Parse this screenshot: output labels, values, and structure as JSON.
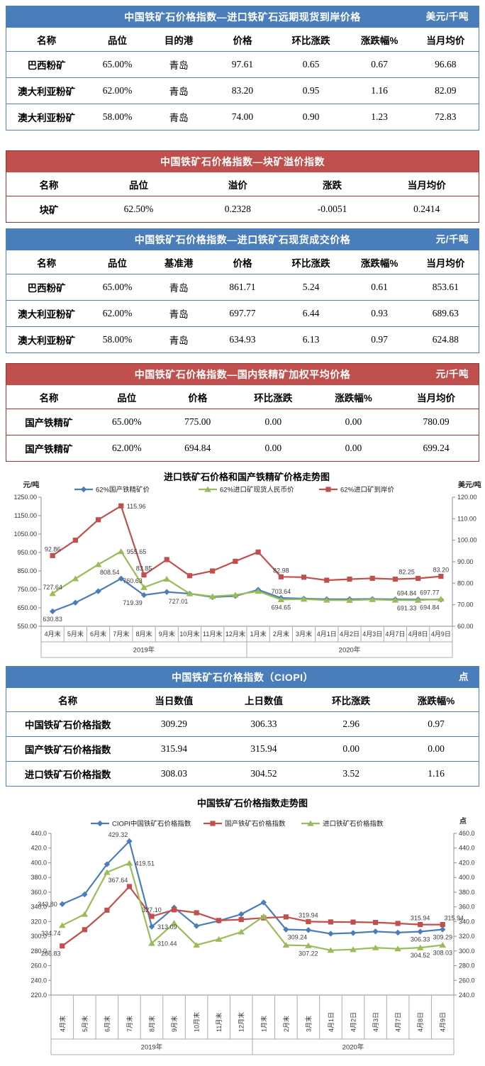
{
  "tables": [
    {
      "id": "forward-spot",
      "theme": "blue",
      "title": "中国铁矿石价格指数—进口铁矿石远期现货到岸价格",
      "unit": "美元/千吨",
      "columns": [
        "名称",
        "品位",
        "目的港",
        "价格",
        "环比涨跌",
        "涨跌幅%",
        "当月均价"
      ],
      "rows": [
        [
          "巴西粉矿",
          "65.00%",
          "青岛",
          "97.61",
          "0.65",
          "0.67",
          "96.68"
        ],
        [
          "澳大利亚粉矿",
          "62.00%",
          "青岛",
          "83.20",
          "0.95",
          "1.16",
          "82.09"
        ],
        [
          "澳大利亚粉矿",
          "58.00%",
          "青岛",
          "74.00",
          "0.90",
          "1.23",
          "72.83"
        ]
      ]
    },
    {
      "id": "lump-premium",
      "theme": "red",
      "title": "中国铁矿石价格指数—块矿溢价指数",
      "unit": "",
      "columns": [
        "名称",
        "品位",
        "溢价",
        "涨跌",
        "当月均价"
      ],
      "rows": [
        [
          "块矿",
          "62.50%",
          "0.2328",
          "-0.0051",
          "0.2414"
        ]
      ]
    },
    {
      "id": "import-spot",
      "theme": "blue",
      "title": "中国铁矿石价格指数—进口铁矿石现货成交价格",
      "unit": "元/千吨",
      "columns": [
        "名称",
        "品位",
        "基准港",
        "价格",
        "环比涨跌",
        "涨跌幅%",
        "当月均价"
      ],
      "rows": [
        [
          "巴西粉矿",
          "65.00%",
          "青岛",
          "861.71",
          "5.24",
          "0.61",
          "853.61"
        ],
        [
          "澳大利亚粉矿",
          "62.00%",
          "青岛",
          "697.77",
          "6.44",
          "0.93",
          "689.63"
        ],
        [
          "澳大利亚粉矿",
          "58.00%",
          "青岛",
          "634.93",
          "6.13",
          "0.97",
          "624.88"
        ]
      ]
    },
    {
      "id": "domestic-concentrate",
      "theme": "red",
      "title": "中国铁矿石价格指数—国内铁精矿加权平均价格",
      "unit": "元/千吨",
      "columns": [
        "名称",
        "品位",
        "价格",
        "环比涨跌",
        "涨跌幅%",
        "当月均价"
      ],
      "rows": [
        [
          "国产铁精矿",
          "65.00%",
          "775.00",
          "0.00",
          "0.00",
          "780.09"
        ],
        [
          "国产铁精矿",
          "62.00%",
          "694.84",
          "0.00",
          "0.00",
          "699.24"
        ]
      ]
    },
    {
      "id": "ciopi",
      "theme": "blue",
      "title": "中国铁矿石价格指数（CIOPI）",
      "unit": "点",
      "columns": [
        "名称",
        "当日数值",
        "上日数值",
        "环比涨跌",
        "涨跌幅%"
      ],
      "rows": [
        [
          "中国铁矿石价格指数",
          "309.29",
          "306.33",
          "2.96",
          "0.97"
        ],
        [
          "国产铁矿石价格指数",
          "315.94",
          "315.94",
          "0.00",
          "0.00"
        ],
        [
          "进口铁矿石价格指数",
          "308.03",
          "304.52",
          "3.52",
          "1.16"
        ]
      ]
    }
  ],
  "chart_data": [
    {
      "type": "line",
      "title": "进口铁矿石价格和国产铁精矿价格走势图",
      "left_axis": {
        "unit": "元/吨",
        "min": 550,
        "max": 1250,
        "step": 100,
        "decimals": 2
      },
      "right_axis": {
        "unit": "美元/吨",
        "min": 60,
        "max": 120,
        "step": 10,
        "decimals": 2
      },
      "categories": [
        "4月末",
        "5月末",
        "6月末",
        "7月末",
        "8月末",
        "9月末",
        "10月末",
        "11月末",
        "12月末",
        "1月末",
        "2月末",
        "3月末",
        "4月1日",
        "4月2日",
        "4月3日",
        "4月7日",
        "4月8日",
        "4月9日"
      ],
      "x_groups": [
        {
          "label": "2019年",
          "count": 9
        },
        {
          "label": "2020年",
          "count": 9
        }
      ],
      "grid": false,
      "legend_position": "top",
      "series": [
        {
          "name": "62%国产铁精矿价",
          "color": "#4a7ebb",
          "marker": "diamond",
          "axis": "left",
          "values": [
            630.83,
            678,
            740,
            808.54,
            719.39,
            736,
            727,
            708,
            714,
            748,
            703.64,
            700,
            697,
            697,
            698,
            696,
            694.84,
            694.84
          ]
        },
        {
          "name": "62%进口矿现货人民币价",
          "color": "#9bbb59",
          "marker": "triangle",
          "axis": "left",
          "values": [
            727.64,
            808,
            885,
            955.65,
            760.63,
            806,
            727.01,
            712,
            720,
            740,
            694.65,
            697,
            692,
            691,
            695,
            692,
            691.33,
            697.77
          ]
        },
        {
          "name": "62%进口矿到岸价",
          "color": "#c0504d",
          "marker": "square",
          "axis": "right",
          "values": [
            92.86,
            100.0,
            109.5,
            115.96,
            83.85,
            91.0,
            83.5,
            85.7,
            90.2,
            94.5,
            82.98,
            82.8,
            81.4,
            81.9,
            82.3,
            81.9,
            82.25,
            83.2
          ]
        }
      ],
      "point_labels": [
        {
          "series": 0,
          "index": 0,
          "text": "630.83",
          "pos": "below"
        },
        {
          "series": 0,
          "index": 3,
          "text": "808.54",
          "pos": "above-left"
        },
        {
          "series": 0,
          "index": 4,
          "text": "719.39",
          "pos": "below-left"
        },
        {
          "series": 0,
          "index": 10,
          "text": "703.64",
          "pos": "above"
        },
        {
          "series": 0,
          "index": 16,
          "text": "694.84",
          "pos": "above-left"
        },
        {
          "series": 0,
          "index": 17,
          "text": "694.84",
          "pos": "below-left"
        },
        {
          "series": 1,
          "index": 0,
          "text": "727.64",
          "pos": "above"
        },
        {
          "series": 1,
          "index": 3,
          "text": "955.65",
          "pos": "right"
        },
        {
          "series": 1,
          "index": 4,
          "text": "760.63",
          "pos": "above-left"
        },
        {
          "series": 1,
          "index": 6,
          "text": "727.01",
          "pos": "below-left"
        },
        {
          "series": 1,
          "index": 10,
          "text": "694.65",
          "pos": "below"
        },
        {
          "series": 1,
          "index": 16,
          "text": "691.33",
          "pos": "below-left"
        },
        {
          "series": 1,
          "index": 17,
          "text": "697.77",
          "pos": "above-left"
        },
        {
          "series": 2,
          "index": 0,
          "text": "92.86",
          "pos": "above"
        },
        {
          "series": 2,
          "index": 3,
          "text": "115.96",
          "pos": "right"
        },
        {
          "series": 2,
          "index": 4,
          "text": "83.85",
          "pos": "above"
        },
        {
          "series": 2,
          "index": 10,
          "text": "82.98",
          "pos": "above"
        },
        {
          "series": 2,
          "index": 16,
          "text": "82.25",
          "pos": "above-left"
        },
        {
          "series": 2,
          "index": 17,
          "text": "83.20",
          "pos": "above"
        }
      ]
    },
    {
      "type": "line",
      "title": "中国铁矿石价格指数走势图",
      "left_axis": {
        "unit": "",
        "min": 220,
        "max": 440,
        "step": 20,
        "decimals": 1
      },
      "right_axis": {
        "unit": "点",
        "min": 240,
        "max": 460,
        "step": 20,
        "decimals": 1
      },
      "categories": [
        "4月末",
        "5月末",
        "6月末",
        "7月末",
        "8月末",
        "9月末",
        "10月末",
        "11月末",
        "12月末",
        "1月末",
        "2月末",
        "3月末",
        "4月1日",
        "4月2日",
        "4月3日",
        "4月7日",
        "4月8日",
        "4月9日"
      ],
      "x_groups": [
        {
          "label": "2019年",
          "count": 9
        },
        {
          "label": "2020年",
          "count": 9
        }
      ],
      "grid": false,
      "legend_position": "top",
      "series": [
        {
          "name": "CIOPI中国铁矿石价格指数",
          "color": "#4a7ebb",
          "marker": "diamond",
          "axis": "left",
          "values": [
            343.8,
            357,
            398,
            429.32,
            313.09,
            339,
            314,
            321,
            330,
            346,
            309.24,
            308.5,
            303.5,
            304.5,
            306.5,
            305,
            306.33,
            309.29
          ]
        },
        {
          "name": "国产铁矿石价格指数",
          "color": "#c0504d",
          "marker": "square",
          "axis": "left",
          "values": [
            286.83,
            309,
            335.5,
            367.64,
            327.1,
            336,
            332,
            321.5,
            322.8,
            325,
            326.3,
            319.94,
            319.5,
            319.3,
            318.8,
            317.5,
            315.94,
            315.94
          ]
        },
        {
          "name": "进口铁矿石价格指数",
          "color": "#9bbb59",
          "marker": "triangle",
          "axis": "right",
          "values": [
            334.74,
            350,
            407,
            419.51,
            310.44,
            338,
            308,
            316,
            326,
            347,
            308,
            307.22,
            301,
            302,
            304.5,
            303,
            304.52,
            308.03
          ]
        }
      ],
      "point_labels": [
        {
          "series": 0,
          "index": 0,
          "text": "343.80",
          "pos": "left"
        },
        {
          "series": 0,
          "index": 3,
          "text": "429.32",
          "pos": "above-left"
        },
        {
          "series": 0,
          "index": 4,
          "text": "313.09",
          "pos": "right"
        },
        {
          "series": 0,
          "index": 10,
          "text": "309.24",
          "pos": "below-right"
        },
        {
          "series": 0,
          "index": 16,
          "text": "306.33",
          "pos": "below"
        },
        {
          "series": 0,
          "index": 17,
          "text": "309.29",
          "pos": "below"
        },
        {
          "series": 1,
          "index": 0,
          "text": "286.83",
          "pos": "below-left"
        },
        {
          "series": 1,
          "index": 3,
          "text": "367.64",
          "pos": "above-left"
        },
        {
          "series": 1,
          "index": 4,
          "text": "327.10",
          "pos": "above"
        },
        {
          "series": 1,
          "index": 11,
          "text": "319.94",
          "pos": "above"
        },
        {
          "series": 1,
          "index": 16,
          "text": "315.94",
          "pos": "above"
        },
        {
          "series": 1,
          "index": 17,
          "text": "315.94",
          "pos": "above-right"
        },
        {
          "series": 2,
          "index": 0,
          "text": "334.74",
          "pos": "below-left"
        },
        {
          "series": 2,
          "index": 3,
          "text": "419.51",
          "pos": "right"
        },
        {
          "series": 2,
          "index": 4,
          "text": "310.44",
          "pos": "right"
        },
        {
          "series": 2,
          "index": 11,
          "text": "307.22",
          "pos": "below"
        },
        {
          "series": 2,
          "index": 16,
          "text": "304.52",
          "pos": "below"
        },
        {
          "series": 2,
          "index": 17,
          "text": "308.03",
          "pos": "below"
        }
      ]
    }
  ]
}
